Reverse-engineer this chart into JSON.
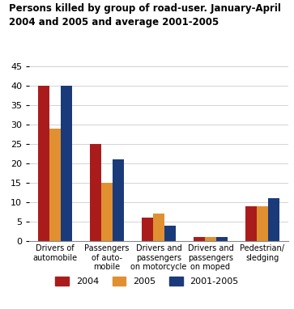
{
  "title": "Persons killed by group of road-user. January-April\n2004 and 2005 and average 2001-2005",
  "categories": [
    "Drivers of\nautomobile",
    "Passengers\nof auto-\nmobile",
    "Drivers and\npassengers\non motorcycle",
    "Drivers and\npassengers\non moped",
    "Pedestrian/\nsledging"
  ],
  "series": {
    "2004": [
      40,
      25,
      6,
      1,
      9
    ],
    "2005": [
      29,
      15,
      7,
      1,
      9
    ],
    "2001-2005": [
      40,
      21,
      4,
      1,
      11
    ]
  },
  "colors": {
    "2004": "#aa1c1c",
    "2005": "#e09030",
    "2001-2005": "#1a3a7a"
  },
  "ylim": [
    0,
    45
  ],
  "yticks": [
    0,
    5,
    10,
    15,
    20,
    25,
    30,
    35,
    40,
    45
  ],
  "bar_width": 0.22,
  "legend_labels": [
    "2004",
    "2005",
    "2001-2005"
  ],
  "grid_color": "#cccccc"
}
